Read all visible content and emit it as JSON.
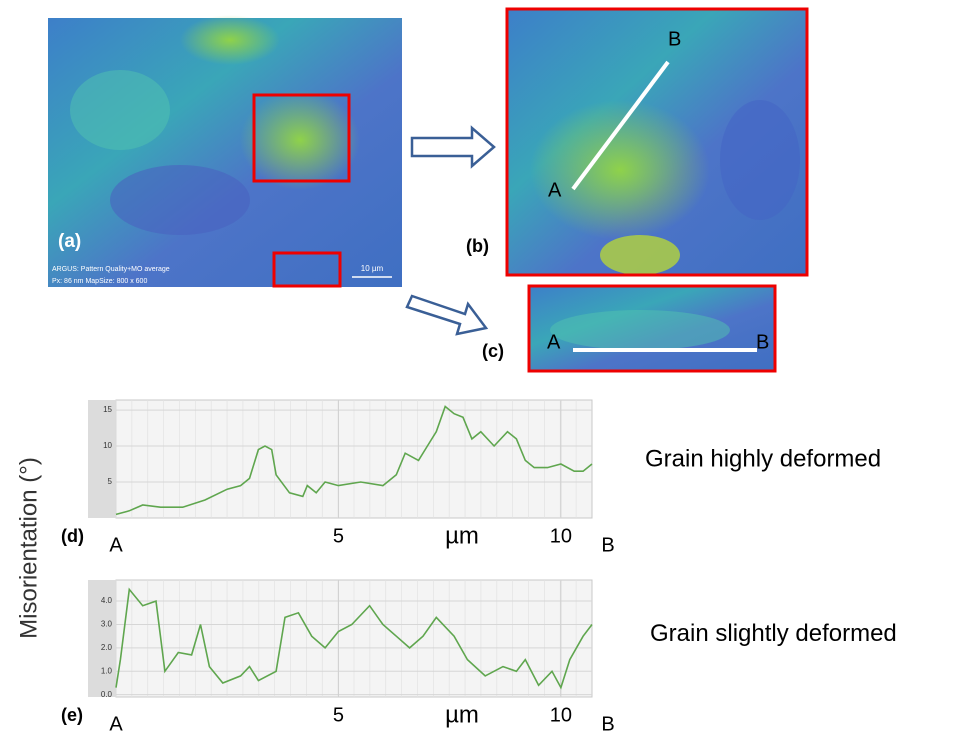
{
  "panels": {
    "a": {
      "label": "(a)",
      "info_line1": "ARGUS: Pattern Quality+MO average",
      "info_line2": "Px: 86 nm MapSize: 800 x 600",
      "scale": "10 µm"
    },
    "b": {
      "label": "(b)",
      "start": "A",
      "end": "B"
    },
    "c": {
      "label": "(c)",
      "start": "A",
      "end": "B"
    }
  },
  "chart_data": [
    {
      "type": "line",
      "panel_label": "(d)",
      "ylabel": "Misorientation (°)",
      "xlabel": "µm",
      "start_label": "A",
      "end_label": "B",
      "annotation": "Grain highly deformed",
      "color": "#5fa64e",
      "grid": true,
      "xlim": [
        0,
        10.7
      ],
      "xticks": [
        5,
        10
      ],
      "ylim": [
        0,
        16.4
      ],
      "yticks": [
        5,
        10,
        15
      ],
      "x": [
        0,
        0.3,
        0.6,
        1,
        1.5,
        2,
        2.5,
        2.8,
        3,
        3.2,
        3.35,
        3.5,
        3.6,
        3.9,
        4.2,
        4.3,
        4.5,
        4.7,
        5,
        5.5,
        6,
        6.3,
        6.5,
        6.8,
        7,
        7.2,
        7.4,
        7.6,
        7.8,
        8,
        8.2,
        8.5,
        8.8,
        9,
        9.2,
        9.4,
        9.7,
        10,
        10.3,
        10.5,
        10.7
      ],
      "values": [
        0.5,
        1,
        1.8,
        1.5,
        1.5,
        2.5,
        4,
        4.5,
        5.5,
        9.5,
        10,
        9.5,
        6,
        3.5,
        3,
        4.5,
        3.5,
        5,
        4.5,
        5,
        4.5,
        6,
        9,
        8,
        10,
        12,
        15.5,
        14.5,
        14,
        11,
        12,
        10,
        12,
        11,
        8,
        7,
        7,
        7.5,
        6.5,
        6.5,
        7.5
      ]
    },
    {
      "type": "line",
      "panel_label": "(e)",
      "xlabel": "µm",
      "start_label": "A",
      "end_label": "B",
      "annotation": "Grain slightly deformed",
      "color": "#5fa64e",
      "grid": true,
      "xlim": [
        0,
        10.7
      ],
      "xticks": [
        5,
        10
      ],
      "ylim": [
        -0.1,
        4.9
      ],
      "yticks": [
        {
          "value": 0,
          "label": "0.0"
        },
        {
          "value": 1,
          "label": "1.0"
        },
        {
          "value": 2,
          "label": "2.0"
        },
        {
          "value": 3,
          "label": "3.0"
        },
        {
          "value": 4,
          "label": "4.0"
        }
      ],
      "x": [
        0,
        0.1,
        0.3,
        0.6,
        0.9,
        1.1,
        1.4,
        1.7,
        1.9,
        2.1,
        2.4,
        2.8,
        3,
        3.2,
        3.6,
        3.8,
        4.1,
        4.4,
        4.7,
        5,
        5.3,
        5.7,
        6,
        6.3,
        6.6,
        6.9,
        7.2,
        7.6,
        7.9,
        8.3,
        8.7,
        9,
        9.2,
        9.5,
        9.8,
        10,
        10.2,
        10.5,
        10.7
      ],
      "values": [
        0.3,
        1.5,
        4.5,
        3.8,
        4.0,
        1.0,
        1.8,
        1.7,
        3.0,
        1.2,
        0.5,
        0.8,
        1.2,
        0.6,
        1.0,
        3.3,
        3.5,
        2.5,
        2.0,
        2.7,
        3.0,
        3.8,
        3.0,
        2.5,
        2.0,
        2.5,
        3.3,
        2.5,
        1.5,
        0.8,
        1.2,
        1.0,
        1.5,
        0.4,
        1.0,
        0.3,
        1.5,
        2.5,
        3.0
      ]
    }
  ]
}
